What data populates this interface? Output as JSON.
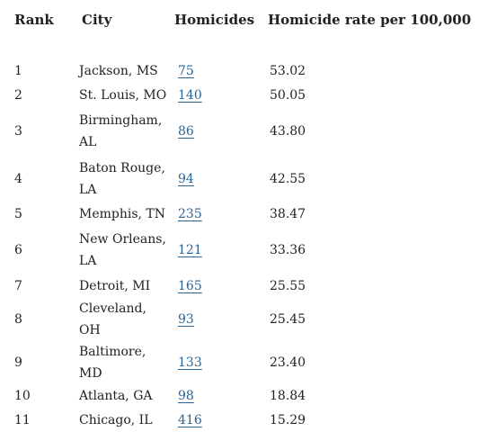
{
  "table": {
    "headers": {
      "rank": "Rank",
      "city": "City",
      "homicides": "Homicides",
      "rate": "Homicide rate per 100,000"
    },
    "rows": [
      {
        "rank": "1",
        "city": "Jackson, MS",
        "homicides": "75",
        "rate": "53.02"
      },
      {
        "rank": "2",
        "city": "St. Louis, MO",
        "homicides": "140",
        "rate": "50.05"
      },
      {
        "rank": "3",
        "city": "Birmingham, AL",
        "homicides": "86",
        "rate": "43.80"
      },
      {
        "rank": "4",
        "city": "Baton Rouge, LA",
        "homicides": "94",
        "rate": "42.55"
      },
      {
        "rank": "5",
        "city": "Memphis, TN",
        "homicides": "235",
        "rate": "38.47"
      },
      {
        "rank": "6",
        "city": "New Orleans, LA",
        "homicides": "121",
        "rate": "33.36"
      },
      {
        "rank": "7",
        "city": "Detroit, MI",
        "homicides": "165",
        "rate": "25.55"
      },
      {
        "rank": "8",
        "city": "Cleveland, OH",
        "homicides": "93",
        "rate": "25.45"
      },
      {
        "rank": "9",
        "city": "Baltimore, MD",
        "homicides": "133",
        "rate": "23.40"
      },
      {
        "rank": "10",
        "city": "Atlanta, GA",
        "homicides": "98",
        "rate": "18.84"
      },
      {
        "rank": "11",
        "city": "Chicago, IL",
        "homicides": "416",
        "rate": "15.29"
      }
    ]
  },
  "colors": {
    "text": "#222222",
    "link": "#2a6496",
    "background": "#ffffff"
  }
}
